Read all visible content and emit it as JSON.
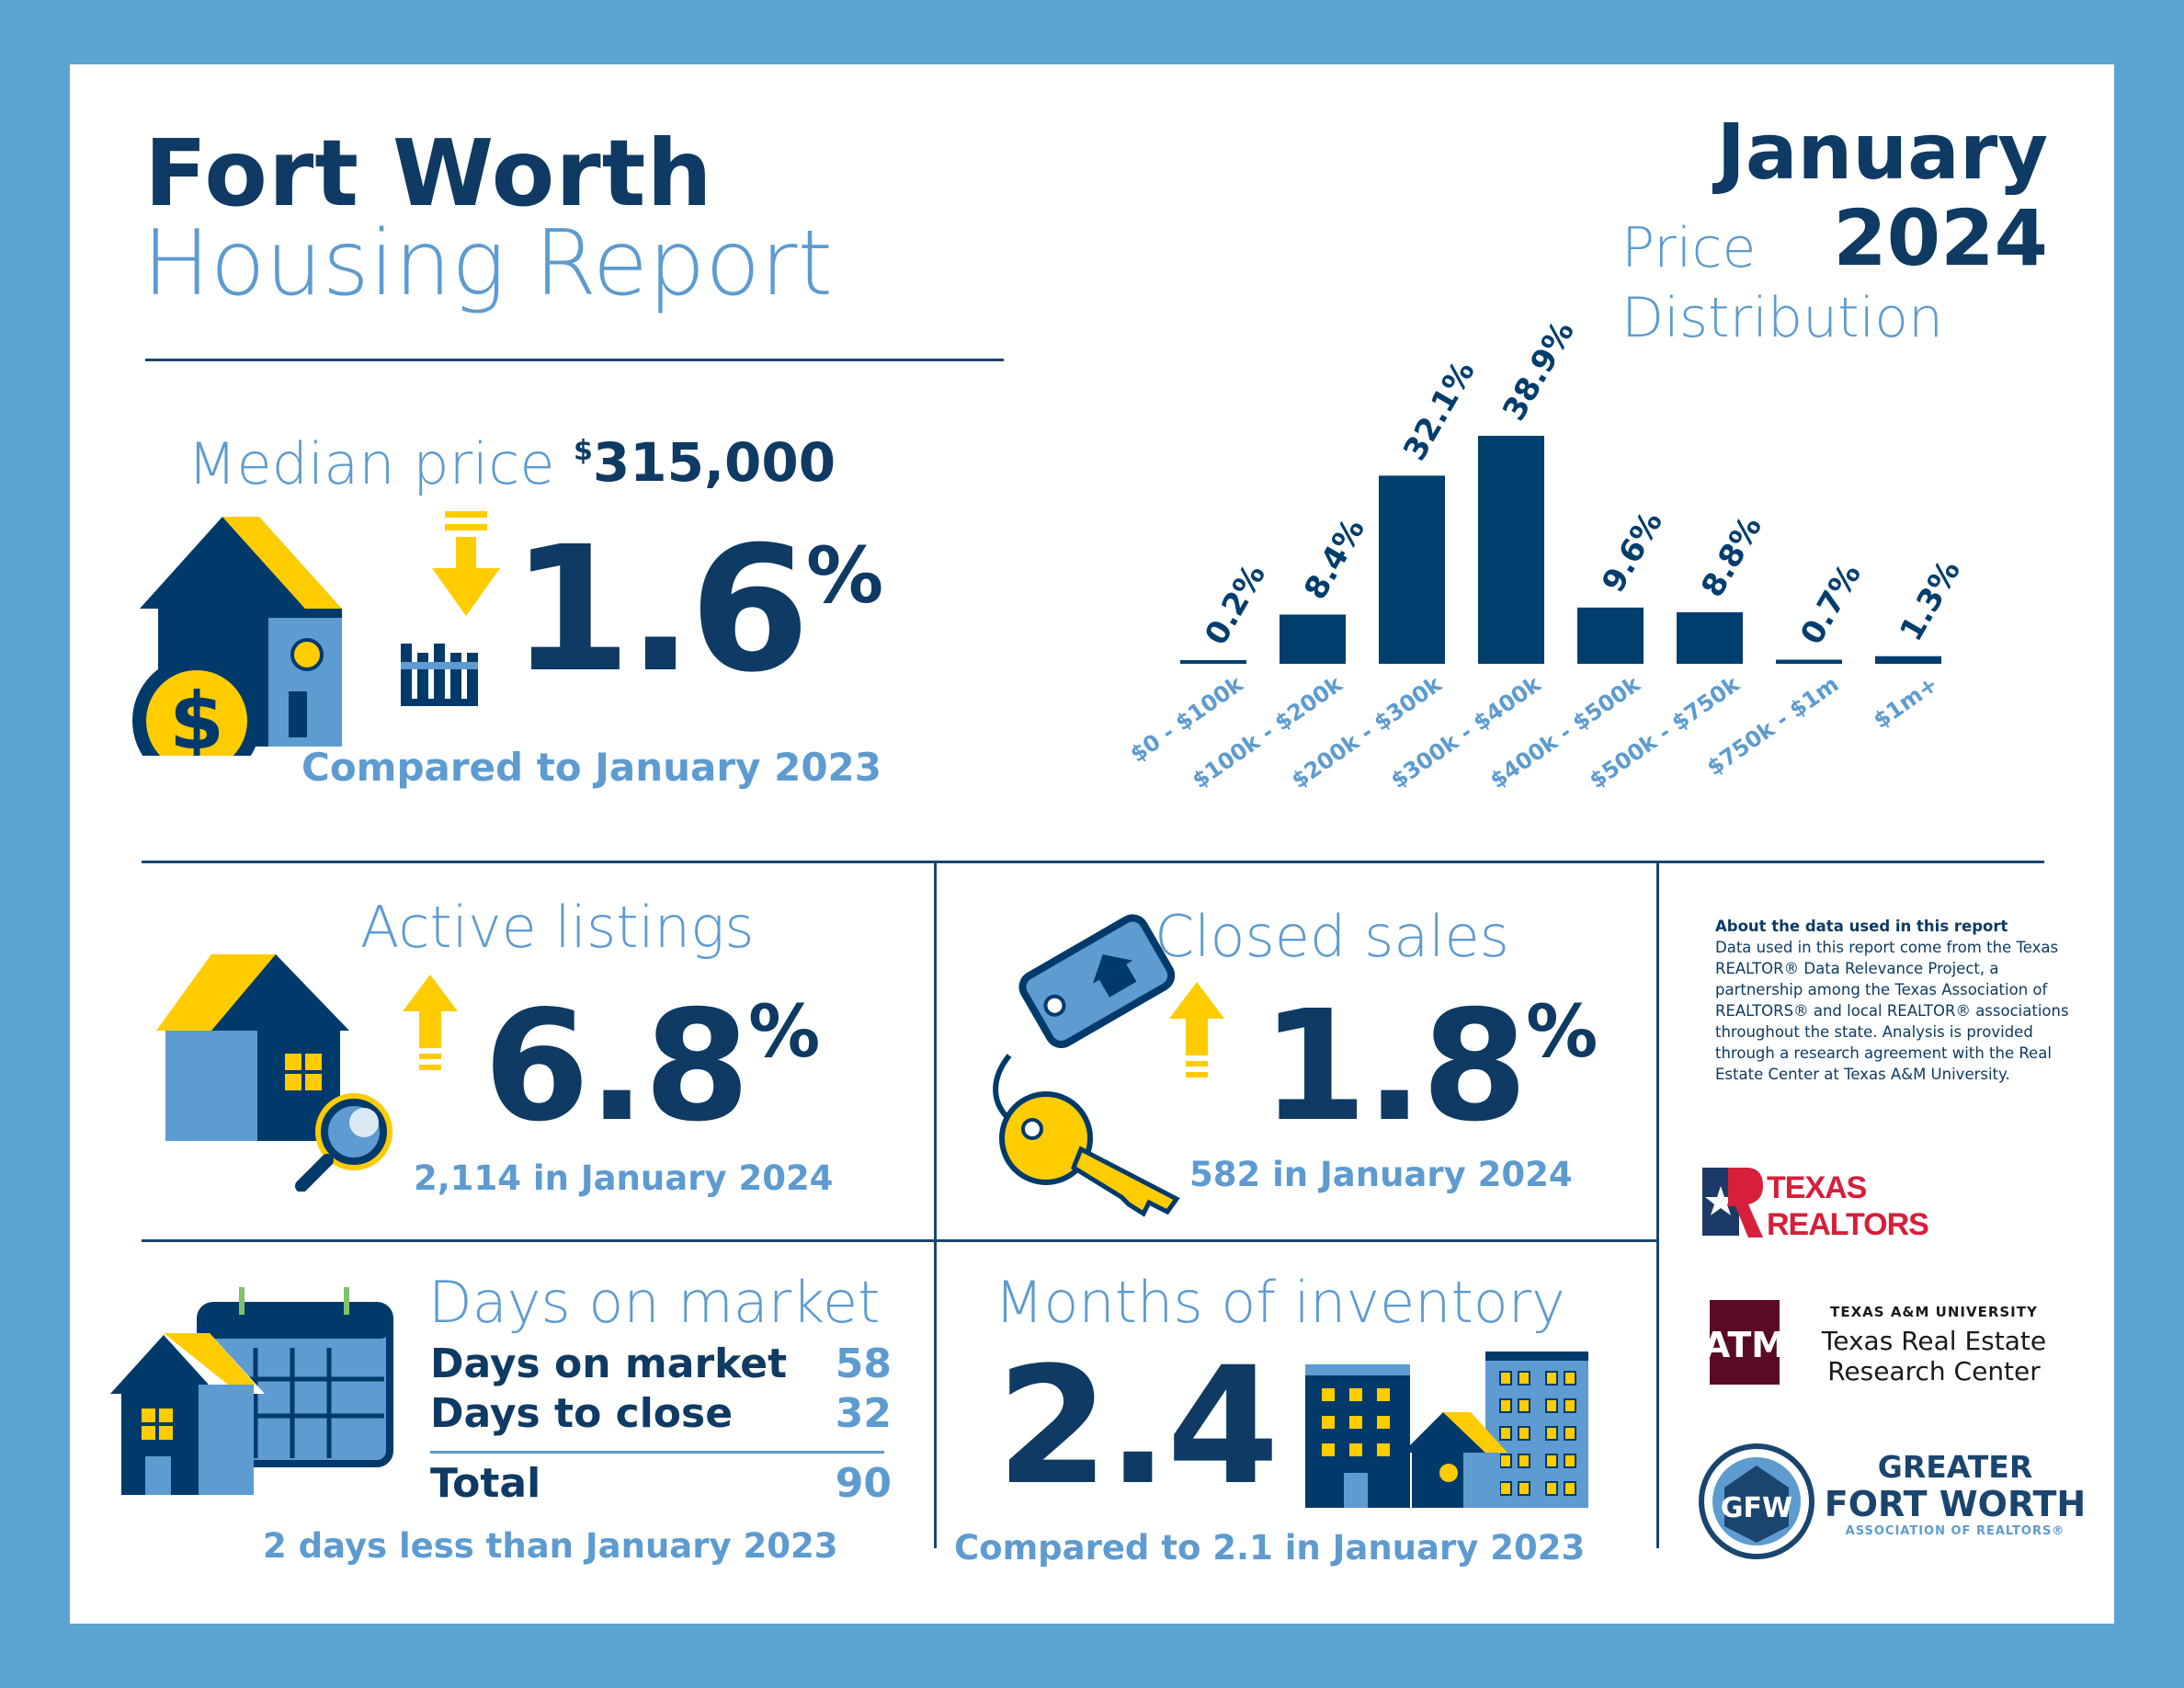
{
  "header": {
    "title_line1": "Fort Worth",
    "title_line2": "Housing Report",
    "month": "January",
    "year": "2024"
  },
  "median": {
    "label": "Median price",
    "currency_symbol": "$",
    "value": "315,000",
    "change": "1.6",
    "percent_sign": "%",
    "caption": "Compared to January 2023"
  },
  "price_distribution": {
    "title_line1": "Price",
    "title_line2": "Distribution"
  },
  "chart_data": {
    "type": "bar",
    "categories": [
      "$0 - $100k",
      "$100k - $200k",
      "$200k - $300k",
      "$300k - $400k",
      "$400k - $500k",
      "$500k - $750k",
      "$750k - $1m",
      "$1m+"
    ],
    "values": [
      0.2,
      8.4,
      32.1,
      38.9,
      9.6,
      8.8,
      0.7,
      1.3
    ],
    "data_labels": [
      "0.2%",
      "8.4%",
      "32.1%",
      "38.9%",
      "9.6%",
      "8.8%",
      "0.7%",
      "1.3%"
    ],
    "title": "Price Distribution",
    "ylim": [
      0,
      38.9
    ],
    "grid": false,
    "bar_color": "#003e6e",
    "label_color": "#5d9bd0"
  },
  "active_listings": {
    "label": "Active listings",
    "change": "6.8",
    "percent_sign": "%",
    "caption": "2,114 in January 2024"
  },
  "closed_sales": {
    "label": "Closed sales",
    "change": "1.8",
    "percent_sign": "%",
    "caption": "582 in January 2024"
  },
  "days_on_market": {
    "label": "Days on market",
    "rows": [
      {
        "label": "Days on market",
        "value": "58"
      },
      {
        "label": "Days to close",
        "value": "32"
      }
    ],
    "total_label": "Total",
    "total_value": "90",
    "caption": "2 days less than January 2023"
  },
  "months_inventory": {
    "label": "Months of inventory",
    "value": "2.4",
    "caption": "Compared to 2.1 in January 2023"
  },
  "about": {
    "heading": "About the data used in this report",
    "body": "Data used in this report come from the Texas REALTOR® Data Relevance Project, a partnership among the Texas Association of REALTORS® and local REALTOR® associations throughout the state. Analysis is provided through a research agreement with the Real Estate Center at Texas A&M University."
  },
  "logos": {
    "texas_realtors_line1": "TEXAS",
    "texas_realtors_line2": "REALTORS",
    "tamu_small": "TEXAS A&M UNIVERSITY",
    "tamu_line1": "Texas Real Estate",
    "tamu_line2": "Research Center",
    "gfw_line1": "GREATER",
    "gfw_line2": "FORT WORTH",
    "gfw_line3": "ASSOCIATION OF REALTORS®"
  },
  "colors": {
    "navy": "#0e3a63",
    "light_blue": "#5d9bd0",
    "yellow": "#ffcc00",
    "frame": "#5ba3d0"
  }
}
